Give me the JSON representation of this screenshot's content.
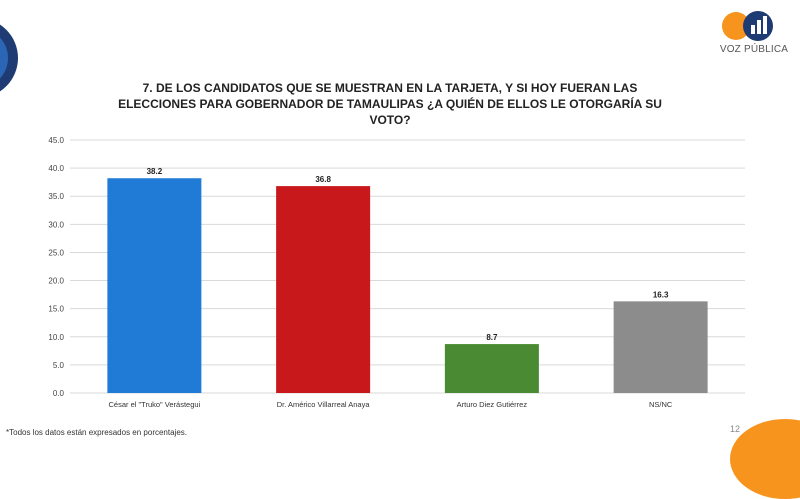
{
  "brand": {
    "name": "VOZ PÚBLICA",
    "accent": "#f7941d",
    "navy": "#1f3b73"
  },
  "title": "7. DE LOS CANDIDATOS QUE SE MUESTRAN EN LA TARJETA, Y SI HOY FUERAN LAS ELECCIONES PARA GOBERNADOR DE TAMAULIPAS ¿A QUIÉN DE ELLOS LE OTORGARÍA SU VOTO?",
  "footnote": "*Todos los datos están expresados en porcentajes.",
  "page_number": "12",
  "chart_data": {
    "type": "bar",
    "title": "7. DE LOS CANDIDATOS QUE SE MUESTRAN EN LA TARJETA, Y SI HOY FUERAN LAS ELECCIONES PARA GOBERNADOR DE TAMAULIPAS ¿A QUIÉN DE ELLOS LE OTORGARÍA SU VOTO?",
    "categories": [
      "César el \"Truko\" Verástegui",
      "Dr. Américo Villarreal Anaya",
      "Arturo Diez Gutiérrez",
      "NS/NC"
    ],
    "values": [
      38.2,
      36.8,
      8.7,
      16.3
    ],
    "value_labels": [
      "38.2",
      "36.8",
      "8.7",
      "16.3"
    ],
    "colors": [
      "#1f7bd6",
      "#c8181c",
      "#4a8a32",
      "#8c8c8c"
    ],
    "ylim": [
      0,
      45
    ],
    "yticks": [
      0,
      5,
      10,
      15,
      20,
      25,
      30,
      35,
      40,
      45
    ],
    "ytick_labels": [
      "0.0",
      "5.0",
      "10.0",
      "15.0",
      "20.0",
      "25.0",
      "30.0",
      "35.0",
      "40.0",
      "45.0"
    ],
    "grid": true,
    "xlabel": "",
    "ylabel": ""
  }
}
